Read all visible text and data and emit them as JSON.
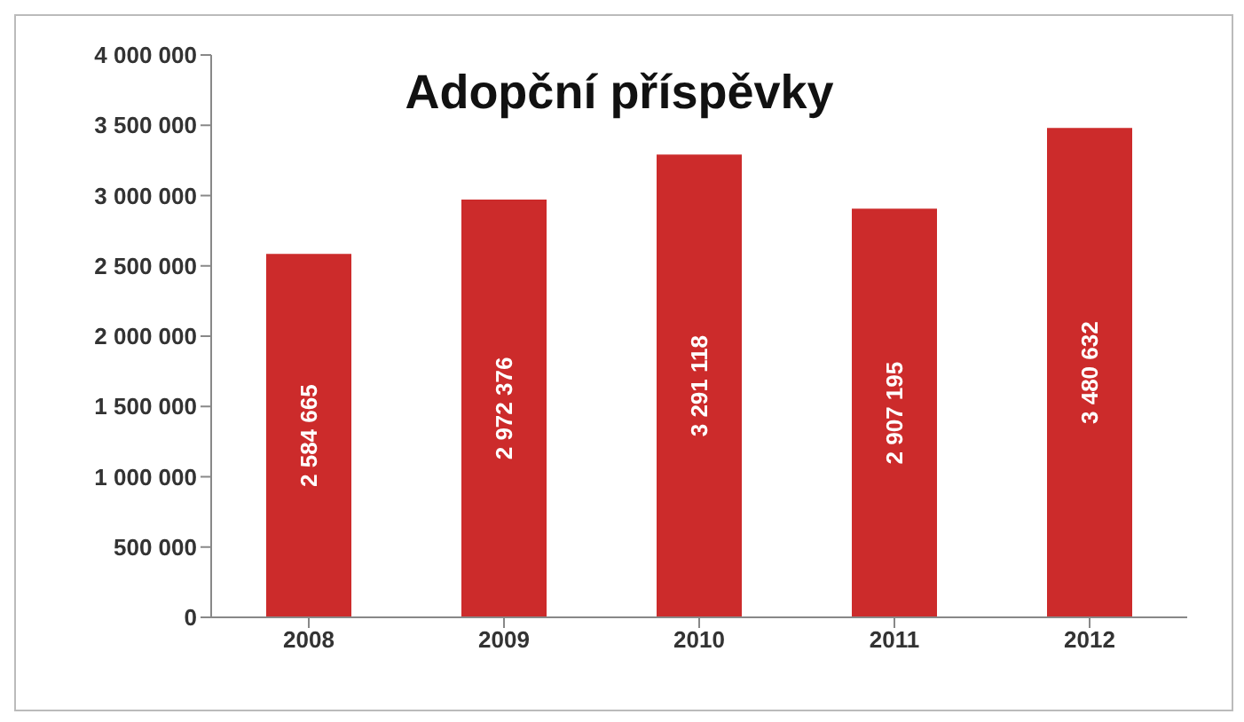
{
  "chart_data": {
    "type": "bar",
    "title": "Adopční příspěvky",
    "categories": [
      "2008",
      "2009",
      "2010",
      "2011",
      "2012"
    ],
    "values": [
      2584665,
      2972376,
      3291118,
      2907195,
      3480632
    ],
    "color": "#cc2b2b",
    "value_labels": [
      "2 584 665",
      "2 972 376",
      "3 291 118",
      "2 907 195",
      "3 480 632"
    ],
    "ylim": [
      0,
      4000000
    ],
    "yticks": [
      {
        "value": 0,
        "label": "0"
      },
      {
        "value": 500000,
        "label": "500 000"
      },
      {
        "value": 1000000,
        "label": "1 000 000"
      },
      {
        "value": 1500000,
        "label": "1 500 000"
      },
      {
        "value": 2000000,
        "label": "2 000 000"
      },
      {
        "value": 2500000,
        "label": "2 500 000"
      },
      {
        "value": 3000000,
        "label": "3 000 000"
      },
      {
        "value": 3500000,
        "label": "3 500 000"
      },
      {
        "value": 4000000,
        "label": "4 000 000"
      }
    ],
    "grid": false,
    "legend": false
  }
}
